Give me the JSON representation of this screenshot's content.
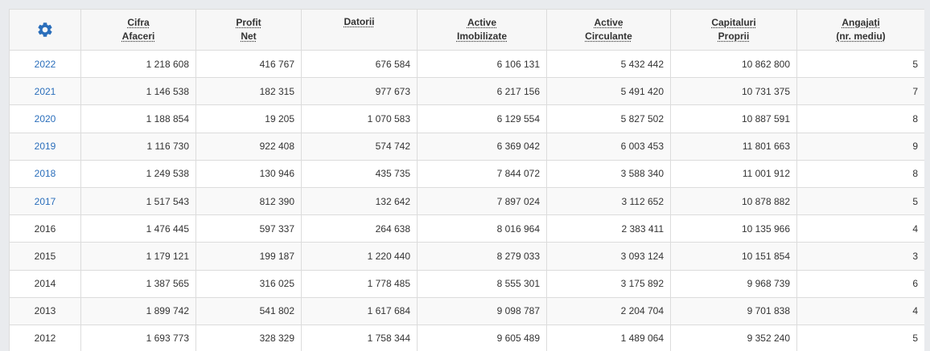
{
  "colors": {
    "accent": "#2a6ebb",
    "header_bg": "#f7f7f7",
    "border": "#dcdcdc"
  },
  "settings_icon": "gear-icon",
  "headers": [
    {
      "line1": "Cifra",
      "line2": "Afaceri"
    },
    {
      "line1": "Profit",
      "line2": "Net"
    },
    {
      "line1": "Datorii",
      "line2": ""
    },
    {
      "line1": "Active",
      "line2": "Imobilizate"
    },
    {
      "line1": "Active",
      "line2": "Circulante"
    },
    {
      "line1": "Capitaluri",
      "line2": "Proprii"
    },
    {
      "line1": "Angajați",
      "line2": "(nr. mediu)"
    }
  ],
  "rows": [
    {
      "year": "2022",
      "link": true,
      "values": [
        "1 218 608",
        "416 767",
        "676 584",
        "6 106 131",
        "5 432 442",
        "10 862 800",
        "5"
      ]
    },
    {
      "year": "2021",
      "link": true,
      "values": [
        "1 146 538",
        "182 315",
        "977 673",
        "6 217 156",
        "5 491 420",
        "10 731 375",
        "7"
      ]
    },
    {
      "year": "2020",
      "link": true,
      "values": [
        "1 188 854",
        "19 205",
        "1 070 583",
        "6 129 554",
        "5 827 502",
        "10 887 591",
        "8"
      ]
    },
    {
      "year": "2019",
      "link": true,
      "values": [
        "1 116 730",
        "922 408",
        "574 742",
        "6 369 042",
        "6 003 453",
        "11 801 663",
        "9"
      ]
    },
    {
      "year": "2018",
      "link": true,
      "values": [
        "1 249 538",
        "130 946",
        "435 735",
        "7 844 072",
        "3 588 340",
        "11 001 912",
        "8"
      ]
    },
    {
      "year": "2017",
      "link": true,
      "values": [
        "1 517 543",
        "812 390",
        "132 642",
        "7 897 024",
        "3 112 652",
        "10 878 882",
        "5"
      ]
    },
    {
      "year": "2016",
      "link": false,
      "values": [
        "1 476 445",
        "597 337",
        "264 638",
        "8 016 964",
        "2 383 411",
        "10 135 966",
        "4"
      ]
    },
    {
      "year": "2015",
      "link": false,
      "values": [
        "1 179 121",
        "199 187",
        "1 220 440",
        "8 279 033",
        "3 093 124",
        "10 151 854",
        "3"
      ]
    },
    {
      "year": "2014",
      "link": false,
      "values": [
        "1 387 565",
        "316 025",
        "1 778 485",
        "8 555 301",
        "3 175 892",
        "9 968 739",
        "6"
      ]
    },
    {
      "year": "2013",
      "link": false,
      "values": [
        "1 899 742",
        "541 802",
        "1 617 684",
        "9 098 787",
        "2 204 704",
        "9 701 838",
        "4"
      ]
    },
    {
      "year": "2012",
      "link": false,
      "values": [
        "1 693 773",
        "328 329",
        "1 758 344",
        "9 605 489",
        "1 489 064",
        "9 352 240",
        "5"
      ]
    }
  ]
}
